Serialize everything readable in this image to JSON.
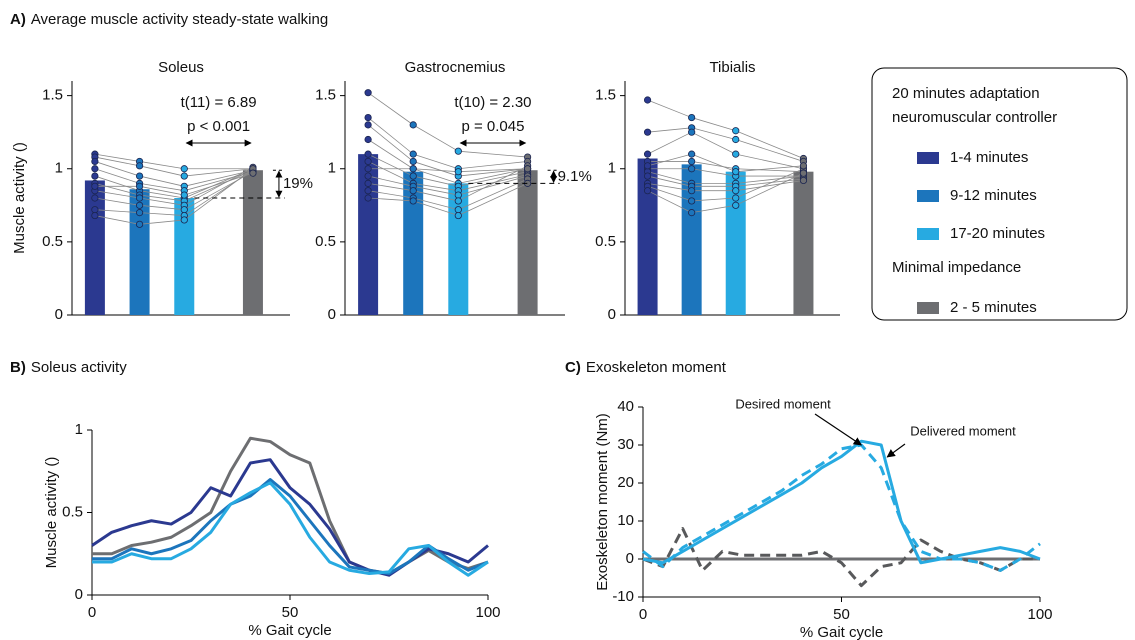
{
  "chart_data": [
    {
      "type": "bar",
      "panel_label": "A)",
      "heading": "Average muscle activity steady-state walking",
      "title": "Soleus",
      "ylabel": "Muscle activity ()",
      "ylim": [
        0,
        1.6
      ],
      "yticks": [
        0,
        0.5,
        1,
        1.5
      ],
      "colors": [
        "#2b3990",
        "#1c75bc",
        "#27aae1",
        "#6d6e71"
      ],
      "values": [
        0.92,
        0.86,
        0.8,
        0.99
      ],
      "points": [
        [
          1.1,
          1.08,
          1.05,
          1.0,
          0.95,
          0.9,
          0.85,
          0.8,
          0.72,
          0.68,
          0.88
        ],
        [
          1.05,
          1.02,
          0.95,
          0.9,
          0.85,
          0.82,
          0.8,
          0.75,
          0.7,
          0.62,
          0.88
        ],
        [
          1.0,
          0.95,
          0.88,
          0.85,
          0.8,
          0.78,
          0.75,
          0.72,
          0.68,
          0.65,
          0.82
        ],
        [
          1.0,
          1.0,
          0.99,
          0.98,
          1.0,
          0.99,
          1.01,
          0.98,
          0.99,
          1.0,
          0.97
        ]
      ],
      "test": "t(11) = 6.89",
      "p": "p < 0.001",
      "difference": "19%"
    },
    {
      "type": "bar",
      "title": "Gastrocnemius",
      "ylim": [
        0,
        1.6
      ],
      "yticks": [
        0,
        0.5,
        1,
        1.5
      ],
      "colors": [
        "#2b3990",
        "#1c75bc",
        "#27aae1",
        "#6d6e71"
      ],
      "values": [
        1.1,
        0.98,
        0.9,
        0.99
      ],
      "points": [
        [
          1.52,
          1.35,
          1.3,
          1.2,
          1.1,
          1.05,
          0.95,
          0.9,
          0.85,
          0.8,
          1.0
        ],
        [
          1.3,
          1.1,
          1.05,
          1.0,
          0.95,
          0.9,
          0.88,
          0.85,
          0.8,
          0.78,
          1.0
        ],
        [
          1.12,
          1.0,
          0.95,
          0.9,
          0.88,
          0.85,
          0.82,
          0.78,
          0.72,
          0.68,
          0.98
        ],
        [
          1.08,
          1.05,
          1.0,
          1.0,
          0.98,
          0.96,
          0.95,
          1.02,
          0.93,
          0.9,
          1.0
        ]
      ],
      "test": "t(10) = 2.30",
      "p": "p = 0.045",
      "difference": "9.1%"
    },
    {
      "type": "bar",
      "title": "Tibialis",
      "ylim": [
        0,
        1.6
      ],
      "yticks": [
        0,
        0.5,
        1,
        1.5
      ],
      "colors": [
        "#2b3990",
        "#1c75bc",
        "#27aae1",
        "#6d6e71"
      ],
      "values": [
        1.07,
        1.03,
        0.98,
        0.98
      ],
      "points": [
        [
          1.47,
          1.25,
          1.1,
          1.05,
          1.0,
          0.98,
          0.95,
          0.9,
          0.88,
          0.85,
          1.02
        ],
        [
          1.35,
          1.28,
          1.25,
          1.05,
          1.0,
          0.9,
          0.88,
          0.85,
          0.78,
          0.7,
          1.1
        ],
        [
          1.26,
          1.2,
          1.1,
          1.0,
          0.95,
          0.9,
          0.88,
          0.85,
          0.8,
          0.75,
          0.98
        ],
        [
          1.07,
          1.05,
          1.0,
          0.98,
          0.95,
          0.95,
          0.93,
          0.92,
          1.0,
          0.97,
          1.02
        ]
      ],
      "legend": [
        {
          "title": "20 minutes adaptation neuromuscular controller",
          "items": [
            {
              "name": "1-4 minutes",
              "color": "#2b3990"
            },
            {
              "name": "9-12 minutes",
              "color": "#1c75bc"
            },
            {
              "name": "17-20 minutes",
              "color": "#27aae1"
            }
          ]
        },
        {
          "title": "Minimal impedance",
          "items": [
            {
              "name": "2 - 5 minutes",
              "color": "#6d6e71"
            }
          ]
        }
      ]
    },
    {
      "type": "line",
      "panel_label": "B)",
      "title": "Soleus activity",
      "xlabel": "% Gait cycle",
      "ylabel": "Muscle activity ()",
      "xlim": [
        0,
        100
      ],
      "xticks": [
        0,
        50,
        100
      ],
      "ylim": [
        0,
        1
      ],
      "yticks": [
        0,
        0.5,
        1
      ],
      "x": [
        0,
        5,
        10,
        15,
        20,
        25,
        30,
        35,
        40,
        45,
        50,
        55,
        60,
        65,
        70,
        75,
        80,
        85,
        90,
        95,
        100
      ],
      "series": [
        {
          "color": "#6d6e71",
          "values": [
            0.25,
            0.25,
            0.3,
            0.32,
            0.35,
            0.42,
            0.5,
            0.75,
            0.95,
            0.93,
            0.85,
            0.8,
            0.45,
            0.2,
            0.15,
            0.13,
            0.2,
            0.27,
            0.2,
            0.16,
            0.2
          ]
        },
        {
          "color": "#2b3990",
          "values": [
            0.3,
            0.38,
            0.42,
            0.45,
            0.43,
            0.5,
            0.65,
            0.6,
            0.8,
            0.82,
            0.65,
            0.55,
            0.4,
            0.2,
            0.15,
            0.12,
            0.2,
            0.28,
            0.25,
            0.2,
            0.3
          ]
        },
        {
          "color": "#1c75bc",
          "values": [
            0.22,
            0.22,
            0.28,
            0.25,
            0.28,
            0.33,
            0.45,
            0.55,
            0.6,
            0.7,
            0.6,
            0.45,
            0.3,
            0.17,
            0.15,
            0.13,
            0.2,
            0.3,
            0.22,
            0.15,
            0.2
          ]
        },
        {
          "color": "#27aae1",
          "values": [
            0.2,
            0.2,
            0.25,
            0.22,
            0.22,
            0.28,
            0.38,
            0.55,
            0.62,
            0.68,
            0.55,
            0.35,
            0.2,
            0.15,
            0.13,
            0.14,
            0.28,
            0.3,
            0.2,
            0.12,
            0.2
          ]
        }
      ]
    },
    {
      "type": "line",
      "panel_label": "C)",
      "title": "Exoskeleton moment",
      "xlabel": "% Gait cycle",
      "ylabel": "Exoskeleton moment (Nm)",
      "xlim": [
        0,
        100
      ],
      "xticks": [
        0,
        50,
        100
      ],
      "ylim": [
        -10,
        40
      ],
      "yticks": [
        -10,
        0,
        10,
        20,
        30,
        40
      ],
      "x": [
        0,
        5,
        10,
        15,
        20,
        25,
        30,
        35,
        40,
        45,
        50,
        55,
        60,
        65,
        70,
        75,
        80,
        85,
        90,
        95,
        100
      ],
      "series": [
        {
          "color": "#6d6e71",
          "dashed": false,
          "values": [
            0,
            0,
            0,
            0,
            0,
            0,
            0,
            0,
            0,
            0,
            0,
            0,
            0,
            0,
            0,
            0,
            0,
            0,
            0,
            0,
            0
          ]
        },
        {
          "color": "#58595b",
          "dashed": true,
          "values": [
            0,
            -2,
            8,
            -3,
            2,
            1,
            1,
            1,
            1,
            2,
            -1,
            -7,
            -2,
            -1,
            5,
            2,
            0,
            -1,
            -3,
            0,
            0
          ]
        },
        {
          "name": "Delivered moment",
          "color": "#27aae1",
          "dashed": false,
          "values": [
            0,
            -1,
            2,
            5,
            8,
            11,
            14,
            17,
            20,
            24,
            27,
            31,
            30,
            10,
            -1,
            0,
            1,
            2,
            3,
            2,
            0
          ]
        },
        {
          "name": "Desired moment",
          "color": "#27aae1",
          "dashed": true,
          "values": [
            2,
            -2,
            3,
            6,
            9,
            12,
            15,
            18,
            22,
            25,
            29,
            30,
            24,
            10,
            2,
            0,
            0,
            -1,
            -3,
            0,
            4
          ]
        }
      ]
    }
  ]
}
